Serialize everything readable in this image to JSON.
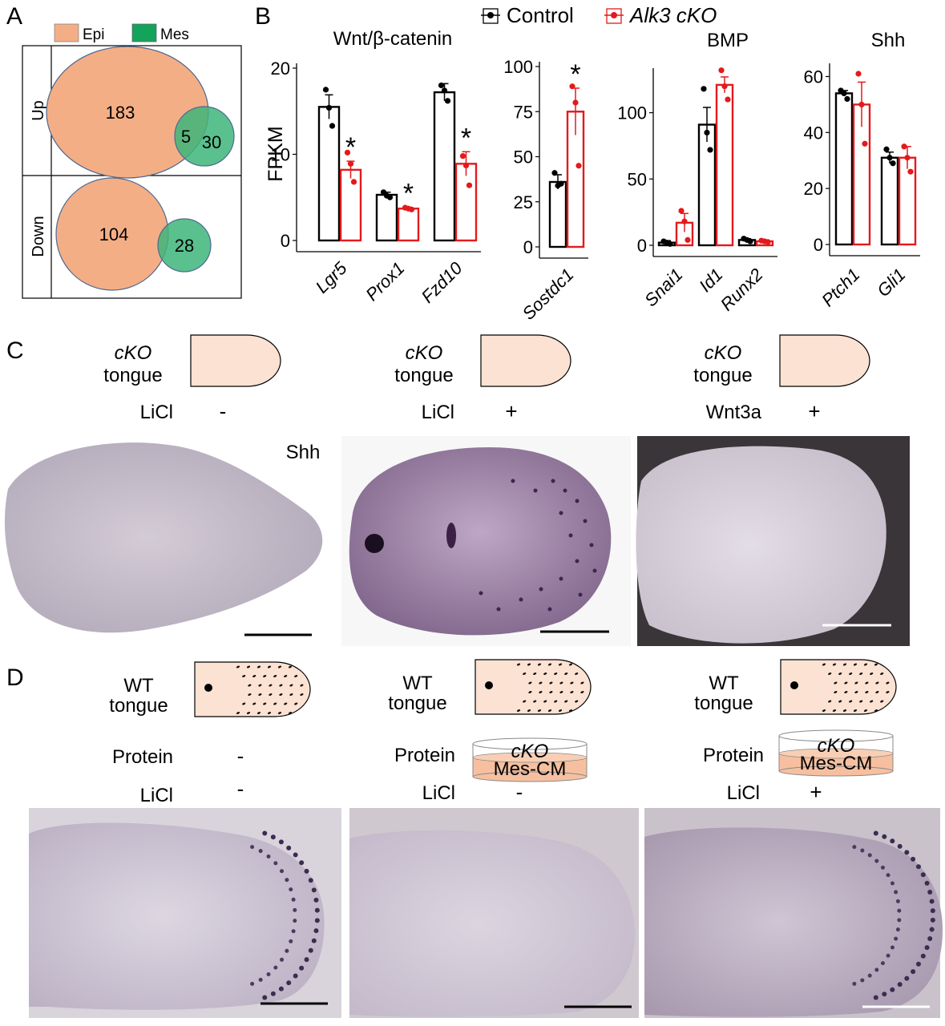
{
  "panels": {
    "A": "A",
    "B": "B",
    "C": "C",
    "D": "D"
  },
  "panelA": {
    "legend": {
      "epi": "Epi",
      "mes": "Mes"
    },
    "rows": {
      "up": "Up",
      "down": "Down"
    },
    "up": {
      "epi_only": "183",
      "overlap": "5",
      "mes_only": "30"
    },
    "down": {
      "epi_only": "104",
      "mes_only": "28"
    },
    "colors": {
      "epi": "#f4ae86",
      "mes": "#3db57a"
    }
  },
  "panelB": {
    "legend": {
      "control": "Control",
      "cko": "Alk3 cKO"
    },
    "ylabel": "FPKM",
    "sig": "*"
  },
  "chart_data": [
    {
      "type": "bar",
      "title": "Wnt/β-catenin",
      "ylabel": "FPKM",
      "ylim": [
        0,
        20
      ],
      "yticks": [
        0,
        10,
        20
      ],
      "categories": [
        "Lgr5",
        "Prox1",
        "Fzd10"
      ],
      "series": [
        {
          "name": "Control",
          "color": "#000000",
          "values": [
            15.5,
            5.3,
            17.2
          ],
          "errors": [
            1.4,
            0.3,
            1.0
          ],
          "points": [
            [
              17.5,
              15.4,
              13.3
            ],
            [
              5.6,
              5.2,
              5.0
            ],
            [
              18.0,
              17.4,
              16.2
            ]
          ]
        },
        {
          "name": "Alk3 cKO",
          "color": "#e31a1c",
          "values": [
            8.2,
            3.7,
            8.9
          ],
          "errors": [
            1.0,
            0.15,
            1.4
          ],
          "points": [
            [
              10.2,
              8.9,
              6.8
            ],
            [
              3.8,
              3.7,
              3.6
            ],
            [
              9.8,
              8.7,
              6.4
            ]
          ]
        }
      ],
      "significant": [
        1,
        1,
        1
      ]
    },
    {
      "type": "bar",
      "title": "",
      "ylim": [
        0,
        100
      ],
      "yticks": [
        0,
        25,
        50,
        75,
        100
      ],
      "categories": [
        "Sostdc1"
      ],
      "series": [
        {
          "name": "Control",
          "color": "#000000",
          "values": [
            36
          ],
          "errors": [
            4
          ],
          "points": [
            [
              41,
              34,
              35
            ]
          ]
        },
        {
          "name": "Alk3 cKO",
          "color": "#e31a1c",
          "values": [
            75
          ],
          "errors": [
            13
          ],
          "points": [
            [
              89,
              80,
              45
            ]
          ]
        }
      ],
      "significant": [
        1
      ]
    },
    {
      "type": "bar",
      "title": "BMP",
      "ylim": [
        0,
        130
      ],
      "yticks": [
        0,
        50,
        100
      ],
      "categories": [
        "Snai1",
        "Id1",
        "Runx2"
      ],
      "series": [
        {
          "name": "Control",
          "color": "#000000",
          "values": [
            2,
            91,
            4
          ],
          "errors": [
            1.5,
            13,
            1
          ],
          "points": [
            [
              3,
              2,
              1
            ],
            [
              118,
              85,
              72
            ],
            [
              5,
              4,
              3
            ]
          ]
        },
        {
          "name": "Alk3 cKO",
          "color": "#e31a1c",
          "values": [
            17,
            121,
            3
          ],
          "errors": [
            7,
            6,
            0.5
          ],
          "points": [
            [
              26,
              18,
              4
            ],
            [
              132,
              120,
              110
            ],
            [
              3.5,
              3,
              2.5
            ]
          ]
        }
      ],
      "significant": [
        0,
        0,
        0
      ]
    },
    {
      "type": "bar",
      "title": "Shh",
      "ylim": [
        0,
        63
      ],
      "yticks": [
        0,
        20,
        40,
        60
      ],
      "categories": [
        "Ptch1",
        "Gli1"
      ],
      "series": [
        {
          "name": "Control",
          "color": "#000000",
          "values": [
            54,
            31
          ],
          "errors": [
            1,
            2
          ],
          "points": [
            [
              55,
              54,
              52
            ],
            [
              34,
              31,
              29
            ]
          ]
        },
        {
          "name": "Alk3 cKO",
          "color": "#e31a1c",
          "values": [
            50,
            31
          ],
          "errors": [
            8,
            4
          ],
          "points": [
            [
              61,
              50,
              36
            ],
            [
              35,
              31,
              26
            ]
          ]
        }
      ],
      "significant": [
        0,
        0
      ]
    }
  ],
  "panelC": {
    "schematic_label_italic": "cKO",
    "schematic_label": "tongue",
    "stain": "Shh",
    "conditions": [
      {
        "reagent": "LiCl",
        "sign": "-"
      },
      {
        "reagent": "LiCl",
        "sign": "+"
      },
      {
        "reagent": "Wnt3a",
        "sign": "+"
      }
    ]
  },
  "panelD": {
    "schematic_label_top": "WT",
    "schematic_label": "tongue",
    "protein_label": "Protein",
    "licl_label": "LiCl",
    "dish_italic": "cKO",
    "dish_text": "Mes-CM",
    "conditions": [
      {
        "protein": "-",
        "licl": "-"
      },
      {
        "protein": "dish",
        "licl": "-"
      },
      {
        "protein": "dish",
        "licl": "+"
      }
    ]
  }
}
